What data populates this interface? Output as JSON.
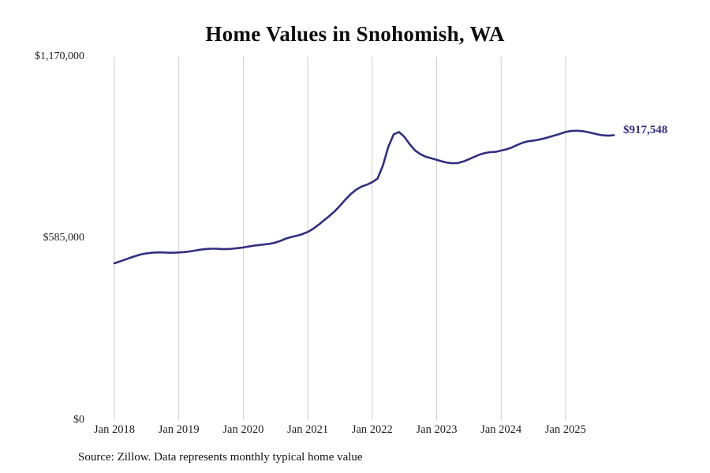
{
  "title": "Home Values in Snohomish, WA",
  "source_note": "Source: Zillow. Data represents monthly typical home value",
  "chart_data": {
    "type": "line",
    "title": "Home Values in Snohomish, WA",
    "series_name": "Monthly typical home value",
    "x_start": "Jan 2018",
    "x_end": "Oct 2025",
    "x_cadence": "monthly",
    "x_ticks": [
      "Jan 2018",
      "Jan 2019",
      "Jan 2020",
      "Jan 2021",
      "Jan 2022",
      "Jan 2023",
      "Jan 2024",
      "Jan 2025"
    ],
    "y_tick_labels_top_to_bottom": [
      "$1,170,000",
      "$585,000",
      "$0"
    ],
    "ylim": [
      0,
      1170000
    ],
    "grid": "vertical-only",
    "legend": false,
    "line_color": "#312e81",
    "grid_color": "#cccccc",
    "end_value": 917548,
    "end_label": "$917,548",
    "monthly_values": [
      505000,
      511000,
      517000,
      523000,
      529000,
      534000,
      537000,
      539000,
      540000,
      540000,
      539000,
      539000,
      540000,
      541000,
      543000,
      546000,
      549000,
      551000,
      552000,
      552000,
      551000,
      551000,
      552000,
      554000,
      556000,
      559000,
      562000,
      564000,
      566000,
      568000,
      572000,
      578000,
      585000,
      590000,
      594000,
      599000,
      606000,
      616000,
      629000,
      643000,
      657000,
      672000,
      690000,
      710000,
      728000,
      742000,
      752000,
      758000,
      766000,
      778000,
      820000,
      880000,
      920000,
      928000,
      912000,
      888000,
      868000,
      856000,
      848000,
      843000,
      838000,
      833000,
      829000,
      827000,
      828000,
      833000,
      840000,
      848000,
      855000,
      860000,
      863000,
      864000,
      868000,
      872000,
      878000,
      886000,
      893000,
      898000,
      900000,
      903000,
      907000,
      912000,
      917000,
      922000,
      928000,
      931000,
      932000,
      931000,
      928000,
      924000,
      920000,
      917000,
      916000,
      917548
    ]
  }
}
